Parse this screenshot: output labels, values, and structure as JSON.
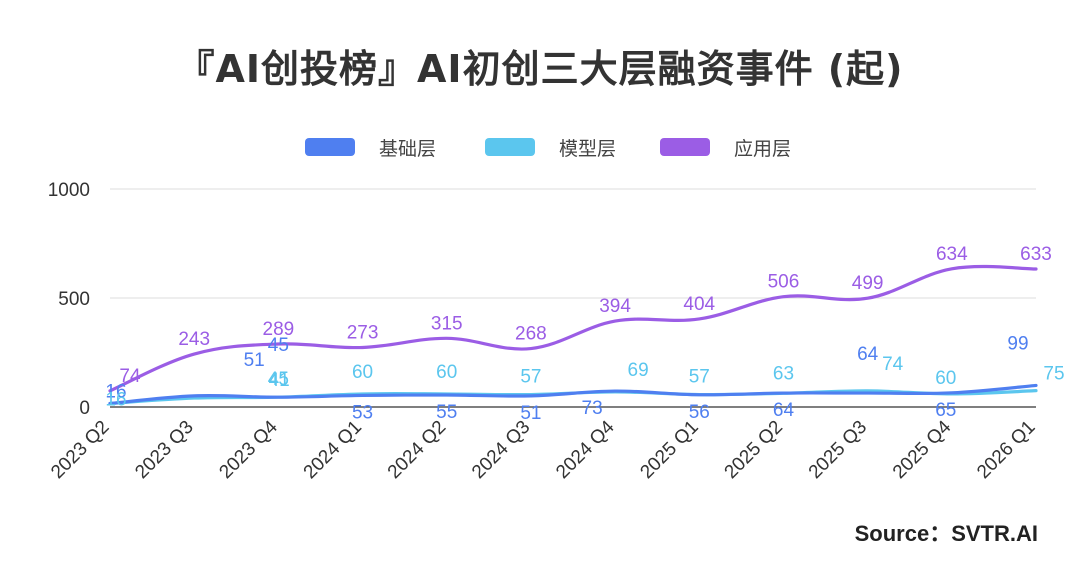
{
  "title": "『AI创投榜』AI初创三大层融资事件 (起)",
  "source": "Source：SVTR.AI",
  "chart_data": {
    "type": "line",
    "title": "『AI创投榜』AI初创三大层融资事件 (起)",
    "categories": [
      "2023 Q2",
      "2023 Q3",
      "2023 Q4",
      "2024 Q1",
      "2024 Q2",
      "2024 Q3",
      "2024 Q4",
      "2025 Q1",
      "2025 Q2",
      "2025 Q3",
      "2025 Q4",
      "2026 Q1"
    ],
    "series": [
      {
        "name": "基础层",
        "color": "#4f7ff0",
        "values": [
          16,
          51,
          45,
          53,
          55,
          51,
          73,
          56,
          64,
          64,
          65,
          99
        ]
      },
      {
        "name": "模型层",
        "color": "#5bc6ee",
        "values": [
          16,
          41,
          45,
          60,
          60,
          57,
          69,
          57,
          63,
          74,
          60,
          75
        ]
      },
      {
        "name": "应用层",
        "color": "#9b5de5",
        "values": [
          74,
          243,
          289,
          273,
          315,
          268,
          394,
          404,
          506,
          499,
          634,
          633
        ]
      }
    ],
    "yticks": [
      "0",
      "500",
      "1000"
    ],
    "ylim": [
      0,
      1000
    ],
    "legend": "top-center",
    "grid": true,
    "smooth": true
  }
}
